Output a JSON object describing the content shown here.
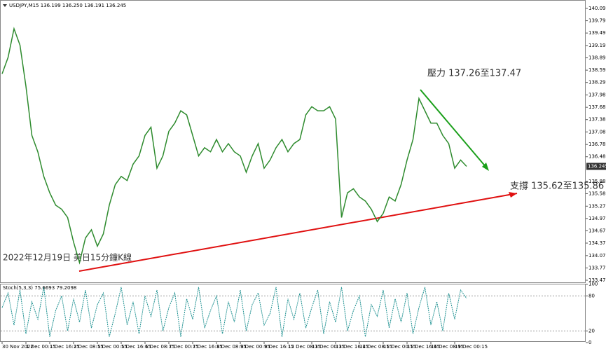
{
  "chart_data": [
    {
      "type": "line",
      "title": "USDJPY,M15  136.199 136.250 136.191 136.245",
      "annotations": [
        "壓力 137.26至137.47",
        "支撐 135.62至135.86",
        "2022年12月19日 美日15分鐘K線"
      ],
      "current_price": 136.245,
      "xlim": [
        0,
        97
      ],
      "xticks": [
        {
          "value": 0,
          "label": "30 Nov 2022"
        },
        {
          "value": 4,
          "label": "1 Dec 00:15"
        },
        {
          "value": 8,
          "label": "1 Dec 16:15"
        },
        {
          "value": 12,
          "label": "2 Dec 08:15"
        },
        {
          "value": 16,
          "label": "5 Dec 00:15"
        },
        {
          "value": 20,
          "label": "5 Dec 16:15"
        },
        {
          "value": 24,
          "label": "6 Dec 08:15"
        },
        {
          "value": 28,
          "label": "7 Dec 00:15"
        },
        {
          "value": 32,
          "label": "7 Dec 16:15"
        },
        {
          "value": 36,
          "label": "8 Dec 08:15"
        },
        {
          "value": 40,
          "label": "9 Dec 00:15"
        },
        {
          "value": 44,
          "label": "9 Dec 16:15"
        },
        {
          "value": 48,
          "label": "12 Dec 08:15"
        },
        {
          "value": 52,
          "label": "13 Dec 00:15"
        },
        {
          "value": 56,
          "label": "13 Dec 16:15"
        },
        {
          "value": 60,
          "label": "14 Dec 08:15"
        },
        {
          "value": 64,
          "label": "15 Dec 00:15"
        },
        {
          "value": 68,
          "label": "15 Dec 16:15"
        },
        {
          "value": 72,
          "label": "16 Dec 08:15"
        },
        {
          "value": 76,
          "label": "19 Dec 00:15"
        }
      ],
      "ylim": [
        133.47,
        140.095
      ],
      "yticks": [
        140.095,
        139.795,
        139.495,
        {
          "value": 139.19,
          "label": "139.190"
        },
        {
          "value": 138.89,
          "label": "138.890"
        },
        {
          "value": 138.59,
          "label": "138.590"
        },
        {
          "value": 138.29,
          "label": "138.290"
        },
        137.985,
        137.685,
        137.385,
        137.085,
        {
          "value": 136.78,
          "label": "136.780"
        },
        {
          "value": 136.48,
          "label": "136.480"
        },
        {
          "value": 135.88,
          "label": "135.880"
        },
        {
          "value": 135.58,
          "label": "135.580"
        },
        135.275,
        134.975,
        134.675,
        134.375,
        {
          "value": 134.07,
          "label": "134.070"
        },
        {
          "value": 133.77,
          "label": "133.770"
        },
        {
          "value": 133.47,
          "label": "133.470"
        }
      ],
      "series": [
        {
          "color": "#2e8b2e",
          "values": [
            138.5,
            138.9,
            139.6,
            139.2,
            138.2,
            137.0,
            136.6,
            136.0,
            135.6,
            135.3,
            135.2,
            135.0,
            134.4,
            133.9,
            134.5,
            134.7,
            134.3,
            134.6,
            135.3,
            135.8,
            136.0,
            135.9,
            136.3,
            136.5,
            137.0,
            137.2,
            136.2,
            136.5,
            137.1,
            137.3,
            137.6,
            137.5,
            137.0,
            136.5,
            136.7,
            136.6,
            136.9,
            136.6,
            136.8,
            136.6,
            136.5,
            136.1,
            136.5,
            136.8,
            136.2,
            136.4,
            136.7,
            136.9,
            136.6,
            136.8,
            136.9,
            137.5,
            137.7,
            137.6,
            137.6,
            137.7,
            137.4,
            135.0,
            135.6,
            135.7,
            135.5,
            135.4,
            135.2,
            134.9,
            135.1,
            135.5,
            135.4,
            135.8,
            136.4,
            136.9,
            137.9,
            137.6,
            137.3,
            137.3,
            137.0,
            136.8,
            136.2,
            136.4,
            136.245
          ]
        }
      ]
    },
    {
      "type": "line",
      "title": "Stoch(5,3,3) 75.6693 79.2098",
      "xlim": [
        0,
        97
      ],
      "ylim": [
        0,
        100
      ],
      "yticks": [
        100,
        80,
        20,
        0
      ],
      "series": [
        {
          "color": "#1a8f8f",
          "values": [
            60,
            85,
            30,
            90,
            15,
            70,
            40,
            95,
            10,
            55,
            80,
            20,
            75,
            35,
            90,
            25,
            65,
            85,
            10,
            50,
            95,
            30,
            70,
            15,
            80,
            45,
            90,
            20,
            60,
            85,
            10,
            75,
            40,
            95,
            25,
            55,
            80,
            15,
            70,
            35,
            90,
            20,
            65,
            85,
            30,
            50,
            95,
            10,
            75,
            40,
            85,
            25,
            60,
            90,
            15,
            70,
            35,
            95,
            20,
            55,
            80,
            10,
            65,
            45,
            90,
            25,
            75,
            35,
            85,
            15,
            60,
            95,
            30,
            70,
            20,
            85,
            40,
            90,
            75.6693
          ]
        }
      ]
    }
  ]
}
